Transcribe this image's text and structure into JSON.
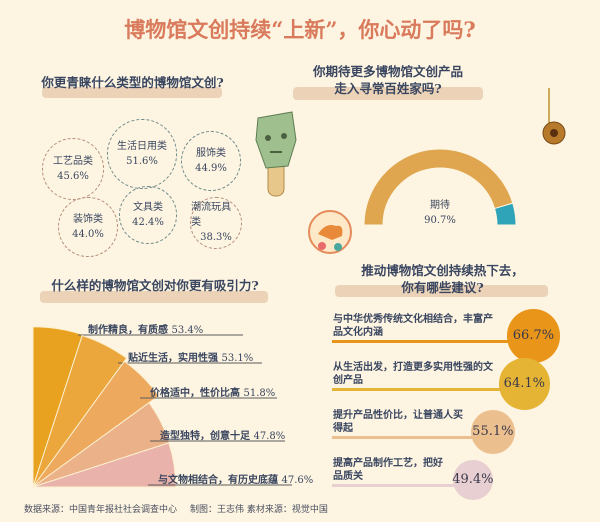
{
  "title": "博物馆文创持续“上新”，你心动了吗?",
  "chart_data": [
    {
      "type": "bubble",
      "title": "你更青睐什么类型的博物馆文创?",
      "categories": [
        "生活日用类",
        "工艺品类",
        "服饰类",
        "装饰类",
        "文具类",
        "潮流玩具类"
      ],
      "values": [
        51.6,
        45.6,
        44.9,
        44.0,
        42.4,
        38.3
      ],
      "labels": [
        "51.6%",
        "45.6%",
        "44.9%",
        "44.0%",
        "42.4%",
        "38.3%"
      ]
    },
    {
      "type": "pie",
      "subtype": "half-donut gauge",
      "title": "你期待更多博物馆文创产品走入寻常百姓家吗?",
      "title_lines": [
        "你期待更多博物馆文创产品",
        "走入寻常百姓家吗?"
      ],
      "categories": [
        "期待",
        "其他"
      ],
      "values": [
        90.7,
        9.3
      ],
      "center_label": "期待",
      "center_value": "90.7%",
      "colors": [
        "#e0a64f",
        "#2fa3b8"
      ]
    },
    {
      "type": "bar",
      "subtype": "radial fan",
      "title": "什么样的博物馆文创对你更有吸引力?",
      "categories": [
        "制作精良，有质感",
        "贴近生活，实用性强",
        "价格适中，性价比高",
        "造型独特，创意十足",
        "与文物相结合，有历史底蕴"
      ],
      "values": [
        53.4,
        53.1,
        51.8,
        47.8,
        47.6
      ],
      "labels": [
        "53.4%",
        "53.1%",
        "51.8%",
        "47.8%",
        "47.6%"
      ],
      "colors": [
        "#e8a21f",
        "#eca73c",
        "#eda95d",
        "#ebb189",
        "#e9b3ab"
      ]
    },
    {
      "type": "bar",
      "title": "推动博物馆文创持续热下去，你有哪些建议?",
      "title_lines": [
        "推动博物馆文创持续热下去，",
        "你有哪些建议?"
      ],
      "categories": [
        "与中华优秀传统文化相结合，丰富产品文化内涵",
        "从生活出发，打造更多实用性强的文创产品",
        "提升产品性价比，让普通人买得起",
        "提高产品制作工艺，把好品质关"
      ],
      "values": [
        66.7,
        64.1,
        55.1,
        49.4
      ],
      "labels": [
        "66.7%",
        "64.1%",
        "55.1%",
        "49.4%"
      ],
      "colors": [
        "#e8951a",
        "#e6b435",
        "#ecbf8e",
        "#e8cfd2"
      ]
    }
  ],
  "footer": {
    "source": "数据来源：中国青年报社社会调查中心",
    "credit": "制图：王志伟   素材来源：视觉中国"
  }
}
